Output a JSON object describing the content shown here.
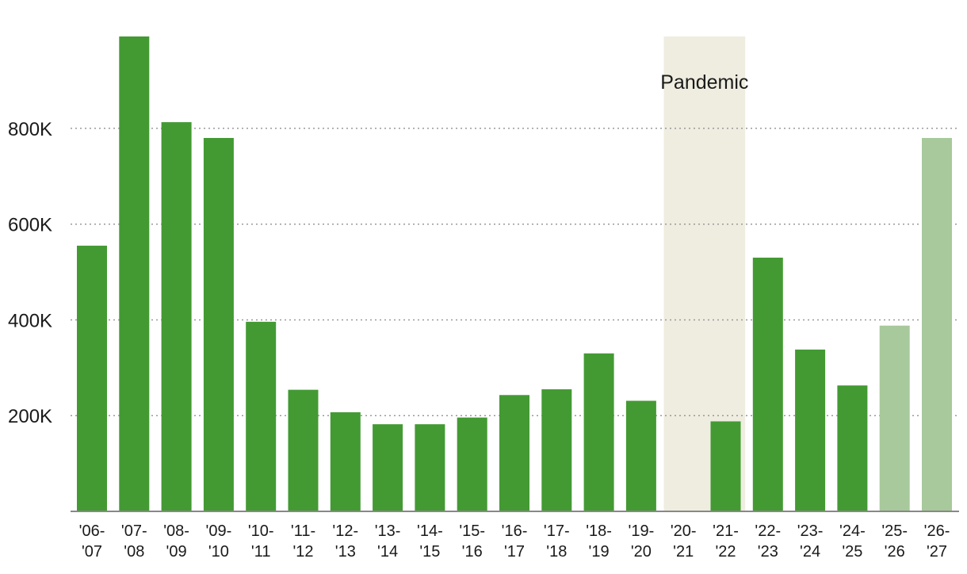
{
  "chart_data": {
    "type": "bar",
    "categories": [
      [
        "'06-",
        "'07"
      ],
      [
        "'07-",
        "'08"
      ],
      [
        "'08-",
        "'09"
      ],
      [
        "'09-",
        "'10"
      ],
      [
        "'10-",
        "'11"
      ],
      [
        "'11-",
        "'12"
      ],
      [
        "'12-",
        "'13"
      ],
      [
        "'13-",
        "'14"
      ],
      [
        "'14-",
        "'15"
      ],
      [
        "'15-",
        "'16"
      ],
      [
        "'16-",
        "'17"
      ],
      [
        "'17-",
        "'18"
      ],
      [
        "'18-",
        "'19"
      ],
      [
        "'19-",
        "'20"
      ],
      [
        "'20-",
        "'21"
      ],
      [
        "'21-",
        "'22"
      ],
      [
        "'22-",
        "'23"
      ],
      [
        "'23-",
        "'24"
      ],
      [
        "'24-",
        "'25"
      ],
      [
        "'25-",
        "'26"
      ],
      [
        "'26-",
        "'27"
      ]
    ],
    "values": [
      555000,
      992000,
      813000,
      780000,
      396000,
      254000,
      207000,
      182000,
      182000,
      196000,
      243000,
      255000,
      330000,
      231000,
      0,
      188000,
      530000,
      338000,
      263000,
      388000,
      780000
    ],
    "projected": [
      false,
      false,
      false,
      false,
      false,
      false,
      false,
      false,
      false,
      false,
      false,
      false,
      false,
      false,
      false,
      false,
      false,
      false,
      false,
      true,
      true
    ],
    "ylim": [
      0,
      992000
    ],
    "yticks": [
      {
        "value": 200000,
        "label": "200K"
      },
      {
        "value": 400000,
        "label": "400K"
      },
      {
        "value": 600000,
        "label": "600K"
      },
      {
        "value": 800000,
        "label": "800K"
      }
    ],
    "grid": true,
    "highlight_band": {
      "label": "Pandemic",
      "from_index": 14,
      "to_index": 15
    },
    "title": "",
    "xlabel": "",
    "ylabel": ""
  },
  "colors": {
    "bar": "#439a33",
    "bar_projected": "#a8c99b",
    "band": "#efede0",
    "grid": "#999999",
    "axis": "#888888"
  }
}
